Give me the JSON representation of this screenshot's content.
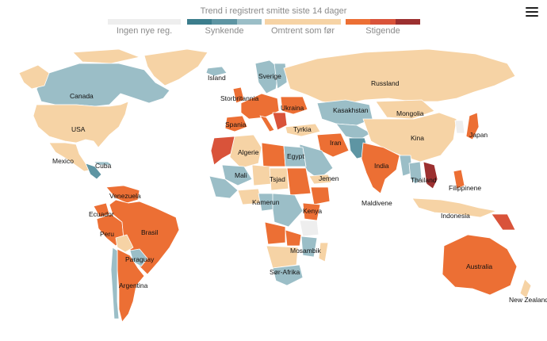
{
  "title": "Trend i registrert smitte siste 14 dager",
  "menu": {
    "icon": "hamburger-menu-icon"
  },
  "colors": {
    "none": "#eeeeee",
    "falling": [
      "#3b7d8c",
      "#5e95a3",
      "#9bbec7"
    ],
    "same": "#f6d3a5",
    "rising": [
      "#ec6f34",
      "#d9533a",
      "#9c3030"
    ],
    "ocean": "#ffffff"
  },
  "legend": [
    {
      "key": "none",
      "label": "Ingen nye reg."
    },
    {
      "key": "falling",
      "label": "Synkende"
    },
    {
      "key": "same",
      "label": "Omtrent som før"
    },
    {
      "key": "rising",
      "label": "Stigende"
    }
  ],
  "countries": [
    {
      "name": "Island",
      "trend": "falling",
      "level": 2
    },
    {
      "name": "Canada",
      "trend": "falling",
      "level": 2
    },
    {
      "name": "USA",
      "trend": "same"
    },
    {
      "name": "Mexico",
      "trend": "same"
    },
    {
      "name": "Cuba",
      "trend": "falling",
      "level": 2
    },
    {
      "name": "Venezuela",
      "trend": "rising",
      "level": 0
    },
    {
      "name": "Ecuador",
      "trend": "rising",
      "level": 0
    },
    {
      "name": "Peru",
      "trend": "rising",
      "level": 0
    },
    {
      "name": "Brasil",
      "trend": "rising",
      "level": 0
    },
    {
      "name": "Paraguay",
      "trend": "falling",
      "level": 2
    },
    {
      "name": "Argentina",
      "trend": "rising",
      "level": 0
    },
    {
      "name": "Sverige",
      "trend": "falling",
      "level": 2
    },
    {
      "name": "Storbritannia",
      "trend": "rising",
      "level": 0
    },
    {
      "name": "Spania",
      "trend": "rising",
      "level": 0
    },
    {
      "name": "Ukraina",
      "trend": "rising",
      "level": 0
    },
    {
      "name": "Russland",
      "trend": "same"
    },
    {
      "name": "Kasakhstan",
      "trend": "falling",
      "level": 2
    },
    {
      "name": "Mongolia",
      "trend": "same"
    },
    {
      "name": "Tyrkia",
      "trend": "same"
    },
    {
      "name": "Iran",
      "trend": "rising",
      "level": 0
    },
    {
      "name": "Kina",
      "trend": "same"
    },
    {
      "name": "Japan",
      "trend": "rising",
      "level": 0
    },
    {
      "name": "Algerie",
      "trend": "same"
    },
    {
      "name": "Egypt",
      "trend": "falling",
      "level": 2
    },
    {
      "name": "Mali",
      "trend": "falling",
      "level": 2
    },
    {
      "name": "Tsjad",
      "trend": "same"
    },
    {
      "name": "Jemen",
      "trend": "same"
    },
    {
      "name": "India",
      "trend": "rising",
      "level": 0
    },
    {
      "name": "Thailand",
      "trend": "falling",
      "level": 2
    },
    {
      "name": "Filippinene",
      "trend": "rising",
      "level": 0
    },
    {
      "name": "Maldivene",
      "trend": "same"
    },
    {
      "name": "Kamerun",
      "trend": "falling",
      "level": 2
    },
    {
      "name": "Kenya",
      "trend": "rising",
      "level": 0
    },
    {
      "name": "Indonesia",
      "trend": "same"
    },
    {
      "name": "Mosambik",
      "trend": "falling",
      "level": 2
    },
    {
      "name": "Sør-Afrika",
      "trend": "falling",
      "level": 2
    },
    {
      "name": "Australia",
      "trend": "rising",
      "level": 0
    },
    {
      "name": "New Zealand",
      "trend": "same"
    }
  ]
}
